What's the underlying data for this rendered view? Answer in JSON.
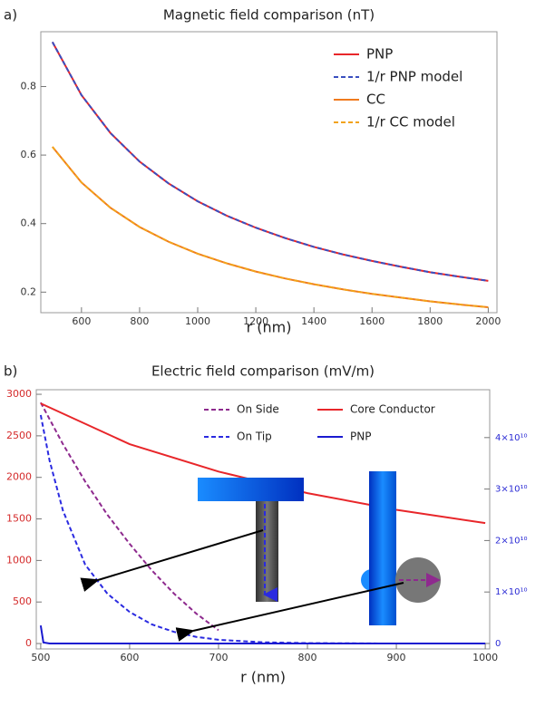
{
  "chart_data": [
    {
      "type": "line",
      "panel": "a)",
      "title": "Magnetic field comparison (nT)",
      "xlabel": "r (nm)",
      "xlim": [
        460,
        2030
      ],
      "ylim": [
        0.14,
        0.96
      ],
      "xticks": [
        600,
        800,
        1000,
        1200,
        1400,
        1600,
        1800,
        2000
      ],
      "yticks": [
        0.2,
        0.4,
        0.6,
        0.8
      ],
      "legend": "upper right",
      "grid": false,
      "series": [
        {
          "name": "PNP",
          "color": "#e8262a",
          "dash": false,
          "x": [
            500,
            600,
            700,
            800,
            900,
            1000,
            1100,
            1200,
            1300,
            1400,
            1500,
            1600,
            1700,
            1800,
            1900,
            2000
          ],
          "values": [
            0.93,
            0.775,
            0.664,
            0.581,
            0.517,
            0.465,
            0.423,
            0.388,
            0.358,
            0.332,
            0.31,
            0.291,
            0.274,
            0.258,
            0.245,
            0.233
          ]
        },
        {
          "name": "1/r PNP model",
          "color": "#3a4fc0",
          "dash": true,
          "x": [
            500,
            600,
            700,
            800,
            900,
            1000,
            1100,
            1200,
            1300,
            1400,
            1500,
            1600,
            1700,
            1800,
            1900,
            2000
          ],
          "values": [
            0.93,
            0.775,
            0.664,
            0.581,
            0.517,
            0.465,
            0.423,
            0.388,
            0.358,
            0.332,
            0.31,
            0.291,
            0.274,
            0.258,
            0.245,
            0.233
          ]
        },
        {
          "name": "CC",
          "color": "#f07a1e",
          "dash": false,
          "x": [
            500,
            600,
            700,
            800,
            900,
            1000,
            1100,
            1200,
            1300,
            1400,
            1500,
            1600,
            1700,
            1800,
            1900,
            2000
          ],
          "values": [
            0.624,
            0.52,
            0.446,
            0.39,
            0.347,
            0.312,
            0.284,
            0.26,
            0.24,
            0.223,
            0.208,
            0.195,
            0.184,
            0.173,
            0.164,
            0.156
          ]
        },
        {
          "name": "1/r CC model",
          "color": "#f2a31c",
          "dash": true,
          "x": [
            500,
            600,
            700,
            800,
            900,
            1000,
            1100,
            1200,
            1300,
            1400,
            1500,
            1600,
            1700,
            1800,
            1900,
            2000
          ],
          "values": [
            0.624,
            0.52,
            0.446,
            0.39,
            0.347,
            0.312,
            0.284,
            0.26,
            0.24,
            0.223,
            0.208,
            0.195,
            0.184,
            0.173,
            0.164,
            0.156
          ]
        }
      ]
    },
    {
      "type": "line",
      "panel": "b)",
      "title": "Electric field comparison (mV/m)",
      "xlabel": "r (nm)",
      "xlim": [
        495,
        1005
      ],
      "ylim": [
        -65,
        3055
      ],
      "y2lim": [
        -1060000000,
        49300000000
      ],
      "xticks": [
        500,
        600,
        700,
        800,
        900,
        1000
      ],
      "yticks": [
        0,
        500,
        1000,
        1500,
        2000,
        2500,
        3000
      ],
      "y2ticks": [
        0,
        {
          "value": 10000000000,
          "label": "1×10¹⁰"
        },
        {
          "value": 20000000000,
          "label": "2×10¹⁰"
        },
        {
          "value": 30000000000,
          "label": "3×10¹⁰"
        },
        {
          "value": 40000000000,
          "label": "4×10¹⁰"
        }
      ],
      "ycolor": "#d42a2a",
      "y2color": "#2a2ad4",
      "legend": "top",
      "grid": false,
      "series": [
        {
          "name": "On Side",
          "color": "#8e2a8e",
          "dash": true,
          "x": [
            500,
            525,
            550,
            575,
            600,
            625,
            650,
            675,
            700
          ],
          "values": [
            2900,
            2400,
            1950,
            1550,
            1200,
            880,
            600,
            360,
            160
          ]
        },
        {
          "name": "Core Conductor",
          "color": "#e8262a",
          "dash": false,
          "x": [
            500,
            600,
            700,
            800,
            900,
            1000
          ],
          "values": [
            2890,
            2400,
            2070,
            1810,
            1610,
            1450
          ]
        },
        {
          "name": "On Tip",
          "color": "#2a2ae0",
          "dash": true,
          "x": [
            500,
            510,
            525,
            550,
            575,
            600,
            625,
            650,
            675,
            700,
            750,
            800,
            900,
            1000
          ],
          "values": [
            2750,
            2200,
            1600,
            950,
            600,
            380,
            230,
            140,
            80,
            45,
            15,
            5,
            0,
            0
          ]
        },
        {
          "name": "PNP",
          "color": "#1a1ad0",
          "dash": false,
          "axis": "y2",
          "x": [
            500,
            503,
            510,
            1000
          ],
          "values": [
            3500000000,
            200000000,
            0,
            0
          ]
        }
      ]
    }
  ]
}
